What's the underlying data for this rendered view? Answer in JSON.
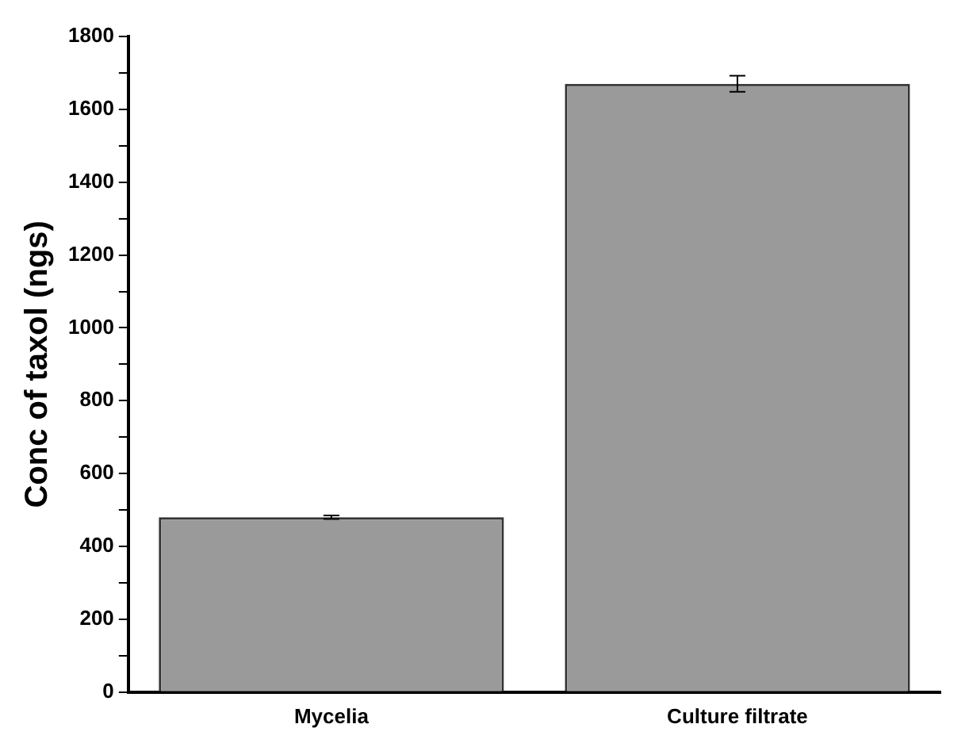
{
  "chart_data": {
    "type": "bar",
    "ylabel": "Conc of taxol (ngs)",
    "categories": [
      "Mycelia",
      "Culture filtrate"
    ],
    "values": [
      480,
      1670
    ],
    "errors": [
      5,
      22
    ],
    "color": "#9a9a9a",
    "ylim": [
      0,
      1800
    ],
    "yticks": [
      0,
      {
        "value": 100,
        "label": null
      },
      200,
      {
        "value": 300,
        "label": null
      },
      400,
      {
        "value": 500,
        "label": null
      },
      600,
      {
        "value": 700,
        "label": null
      },
      800,
      {
        "value": 900,
        "label": null
      },
      1000,
      {
        "value": 1100,
        "label": null
      },
      1200,
      {
        "value": 1300,
        "label": null
      },
      1400,
      {
        "value": 1500,
        "label": null
      },
      1600,
      {
        "value": 1700,
        "label": null
      },
      1800
    ],
    "grid": false,
    "legend": false
  }
}
